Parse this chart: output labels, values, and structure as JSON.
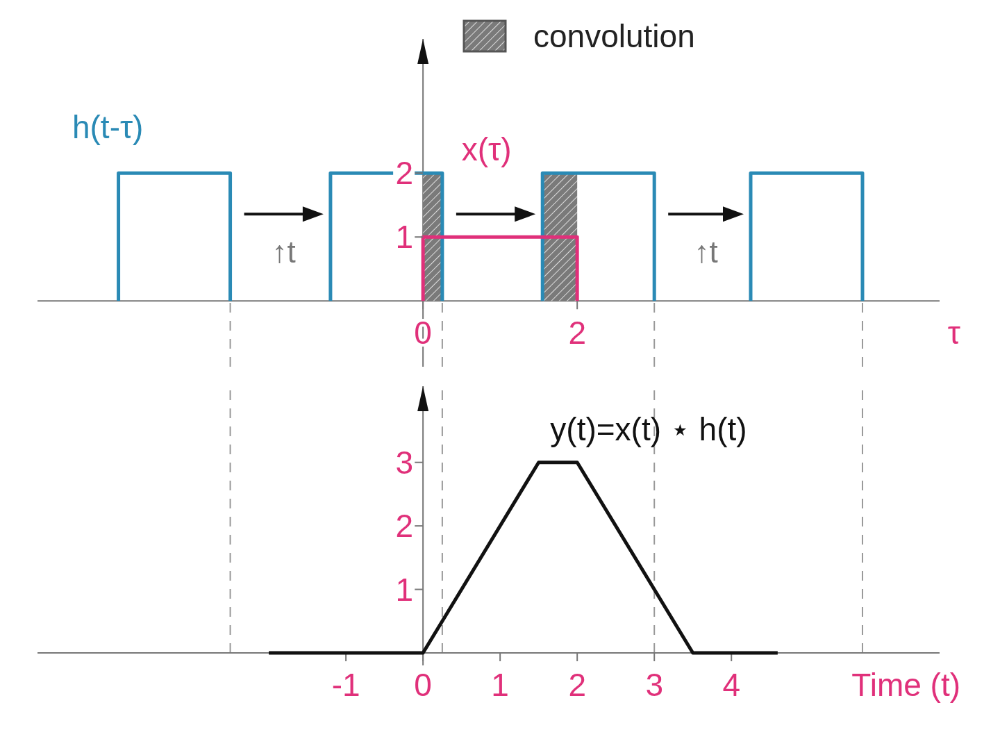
{
  "chart_data": [
    {
      "type": "line",
      "xlabel": "τ",
      "xlim": [
        -5,
        6.7
      ],
      "ylim": [
        -1.03,
        4.1
      ],
      "xticks": [
        0,
        2
      ],
      "yticks": [
        1,
        2
      ],
      "legend": "top",
      "annotations": [
        "↑t",
        "↑t"
      ],
      "ref_lines": [
        {
          "axis": "x",
          "value": -2.5,
          "line_style": "dashed"
        },
        {
          "axis": "x",
          "value": 0.25,
          "line_style": "dashed"
        },
        {
          "axis": "x",
          "value": 3,
          "line_style": "dashed"
        },
        {
          "axis": "x",
          "value": 5.7,
          "line_style": "dashed"
        }
      ],
      "series": [
        {
          "name": "h(t-τ)",
          "color": "#2a8ab5",
          "x": [
            -3.95,
            -3.95,
            -2.5,
            -2.5,
            -1.9,
            -1.2,
            -1.2,
            0.25,
            0.25,
            0.9,
            1.55,
            1.55,
            3,
            3,
            3.6,
            4.25,
            4.25,
            5.7,
            5.7
          ],
          "values": [
            0,
            2,
            2,
            0,
            null,
            0,
            2,
            2,
            0,
            null,
            0,
            2,
            2,
            0,
            null,
            0,
            2,
            2,
            0
          ]
        },
        {
          "name": "x(τ)",
          "color": "#e0307a",
          "x": [
            0,
            0,
            2,
            2
          ],
          "values": [
            0,
            1,
            1,
            0
          ]
        },
        {
          "name": "convolution",
          "type": "area",
          "color": "#7a7a7a",
          "x": [
            0,
            0.25,
            1,
            1.55,
            2
          ],
          "values": [
            2,
            2,
            null,
            2,
            2
          ]
        }
      ]
    },
    {
      "type": "line",
      "xlabel": "Time (t)",
      "xlim": [
        -5,
        6.7
      ],
      "ylim": [
        0,
        4.2
      ],
      "xticks": [
        -1,
        0,
        1,
        2,
        3,
        4
      ],
      "yticks": [
        1,
        2,
        3
      ],
      "ref_lines": [
        {
          "axis": "x",
          "value": -2.5,
          "line_style": "dashed"
        },
        {
          "axis": "x",
          "value": 0.25,
          "line_style": "dashed"
        },
        {
          "axis": "x",
          "value": 3,
          "line_style": "dashed"
        },
        {
          "axis": "x",
          "value": 5.7,
          "line_style": "dashed"
        }
      ],
      "series": [
        {
          "name": "y(t)=x(t) ⋆ h(t)",
          "color": "#111111",
          "x": [
            -2,
            0,
            1.5,
            2,
            3.5,
            4.6
          ],
          "values": [
            0,
            0,
            3,
            3,
            0,
            0
          ]
        }
      ]
    }
  ]
}
